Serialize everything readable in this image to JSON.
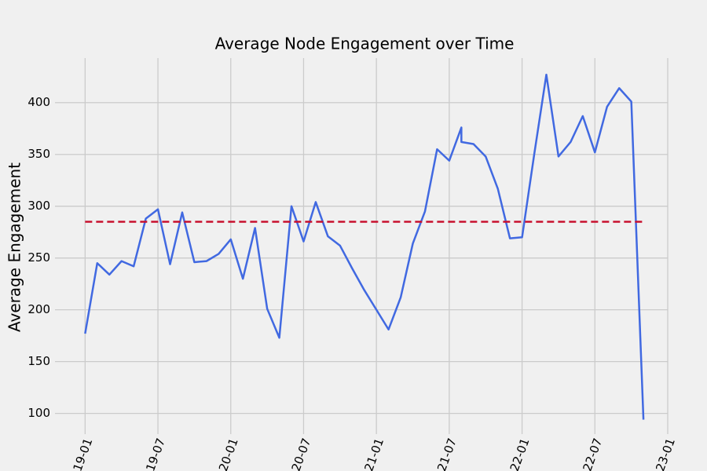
{
  "chart_data": {
    "type": "line",
    "title": "Average Node Engagement over Time",
    "y_label": "Average Engagement",
    "x": [
      "2019-01",
      "2019-02",
      "2019-03",
      "2019-04",
      "2019-05",
      "2019-06",
      "2019-07",
      "2019-08",
      "2019-09",
      "2019-10",
      "2019-11",
      "2019-12",
      "2020-01",
      "2020-02",
      "2020-03",
      "2020-04",
      "2020-05",
      "2020-06",
      "2020-07",
      "2020-08",
      "2020-09",
      "2020-10",
      "2020-11",
      "2020-12",
      "2021-01",
      "2021-02",
      "2021-03",
      "2021-04",
      "2021-05",
      "2021-06",
      "2021-07",
      "2021-08",
      "2021-08",
      "2021-09",
      "2021-10",
      "2021-11",
      "2021-12",
      "2022-01",
      "2022-02",
      "2022-03",
      "2022-04",
      "2022-05",
      "2022-06",
      "2022-07",
      "2022-08",
      "2022-09",
      "2022-10",
      "2022-11"
    ],
    "series": [
      {
        "color": "#4169e1",
        "values": [
          177,
          245,
          234,
          247,
          242,
          288,
          297,
          244,
          294,
          246,
          247,
          254,
          268,
          230,
          279,
          201,
          173,
          300,
          266,
          304,
          271,
          262,
          240,
          219,
          200,
          181,
          212,
          264,
          295,
          355,
          344,
          376,
          362,
          360,
          348,
          317,
          269,
          270,
          350,
          427,
          348,
          362,
          387,
          352,
          396,
          414,
          401,
          94
        ]
      }
    ],
    "reference_line": {
      "value": 285,
      "color": "#c8102e",
      "dashed": true
    },
    "xlim": [
      "2018-10",
      "2023-01"
    ],
    "xticks": [
      "2019-01",
      "2019-07",
      "2020-01",
      "2020-07",
      "2021-01",
      "2021-07",
      "2022-01",
      "2022-07",
      "2023-01"
    ],
    "ylim": [
      80,
      443
    ],
    "yticks": [
      100,
      150,
      200,
      250,
      300,
      350,
      400
    ],
    "grid": true
  }
}
